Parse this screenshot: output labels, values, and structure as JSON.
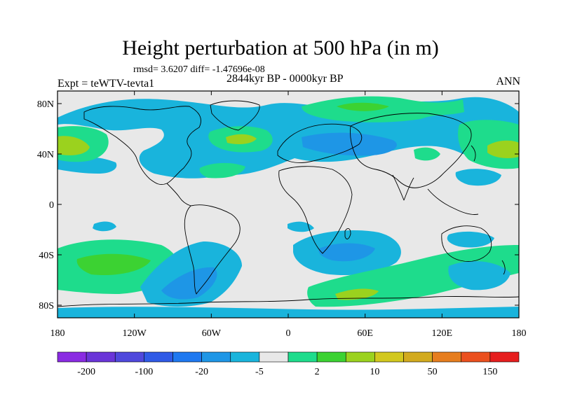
{
  "title": "Height perturbation at 500 hPa (in m)",
  "stats": "rmsd= 3.6207 diff= -1.47696e-08",
  "experiment": "Expt = teWTV-tevta1",
  "period": "2844kyr BP - 0000kyr BP",
  "season": "ANN",
  "lat_labels": [
    "80N",
    "40N",
    "0",
    "40S",
    "80S"
  ],
  "lon_labels": [
    "180",
    "120W",
    "60W",
    "0",
    "60E",
    "120E",
    "180"
  ],
  "colorbar": {
    "colors": [
      "#8a2be2",
      "#6a35d8",
      "#4f48dc",
      "#2f5ae6",
      "#1e78f0",
      "#1e96e6",
      "#19b4dc",
      "#e8e8e8",
      "#1edc8c",
      "#3cd232",
      "#9bd21e",
      "#d2c81e",
      "#d2aa1e",
      "#e67d1e",
      "#eb501e",
      "#e61e1e"
    ],
    "labels": [
      "-200",
      "-100",
      "-20",
      "-5",
      "2",
      "10",
      "50",
      "150"
    ]
  },
  "field_colors": {
    "background": "#e8e8e8",
    "neg_light": "#19b4dc",
    "neg_mid": "#1e96e6",
    "pos_light": "#1edc8c",
    "pos_mid": "#3cd232",
    "pos_strong": "#9bd21e",
    "coast": "#000000"
  }
}
